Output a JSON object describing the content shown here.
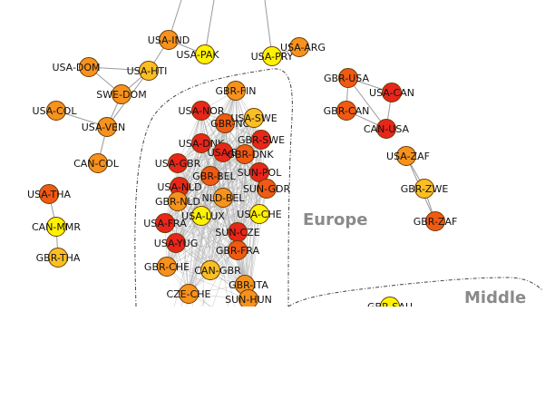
{
  "regions": [
    {
      "id": "europe",
      "label": "Europe"
    },
    {
      "id": "middle",
      "label": "Middle"
    }
  ],
  "colors": {
    "red": "#e8261a",
    "orange_red": "#f05a12",
    "orange": "#f7921d",
    "amber": "#fbbf24",
    "yellow": "#fff200",
    "edge": "#9a9a9a",
    "region_border": "#444444",
    "node_stroke": "#6b3a00"
  },
  "nodes": [
    {
      "id": "USA-IND",
      "label": "USA-IND",
      "color": "orange"
    },
    {
      "id": "USA-PAK",
      "label": "USA-PAK",
      "color": "yellow"
    },
    {
      "id": "USA-PRY",
      "label": "USA-PRY",
      "color": "yellow"
    },
    {
      "id": "USA-ARG",
      "label": "USA-ARG",
      "color": "orange"
    },
    {
      "id": "USA-DOM",
      "label": "USA-DOM",
      "color": "orange"
    },
    {
      "id": "USA-HTI",
      "label": "USA-HTI",
      "color": "amber"
    },
    {
      "id": "SWE-DOM",
      "label": "SWE-DOM",
      "color": "orange"
    },
    {
      "id": "USA-COL",
      "label": "USA-COL",
      "color": "orange"
    },
    {
      "id": "USA-VEN",
      "label": "USA-VEN",
      "color": "orange"
    },
    {
      "id": "CAN-COL",
      "label": "CAN-COL",
      "color": "orange"
    },
    {
      "id": "USA-THA",
      "label": "USA-THA",
      "color": "orange_red"
    },
    {
      "id": "CAN-MMR",
      "label": "CAN-MMR",
      "color": "yellow"
    },
    {
      "id": "GBR-THA",
      "label": "GBR-THA",
      "color": "amber"
    },
    {
      "id": "GBR-USA",
      "label": "GBR-USA",
      "color": "orange_red"
    },
    {
      "id": "USA-CAN",
      "label": "USA-CAN",
      "color": "red"
    },
    {
      "id": "GBR-CAN",
      "label": "GBR-CAN",
      "color": "orange_red"
    },
    {
      "id": "CAN-USA",
      "label": "CAN-USA",
      "color": "red"
    },
    {
      "id": "USA-ZAF",
      "label": "USA-ZAF",
      "color": "orange"
    },
    {
      "id": "GBR-ZWE",
      "label": "GBR-ZWE",
      "color": "amber"
    },
    {
      "id": "GBR-ZAF",
      "label": "GBR-ZAF",
      "color": "orange_red"
    },
    {
      "id": "GBR-FIN",
      "label": "GBR-FIN",
      "color": "orange"
    },
    {
      "id": "USA-NOR",
      "label": "USA-NOR",
      "color": "red"
    },
    {
      "id": "GBR-NOR",
      "label": "GBR-NOR",
      "color": "orange_red"
    },
    {
      "id": "USA-SWE",
      "label": "USA-SWE",
      "color": "amber"
    },
    {
      "id": "USA-DNK",
      "label": "USA-DNK",
      "color": "red"
    },
    {
      "id": "GBR-SWE",
      "label": "GBR-SWE",
      "color": "red"
    },
    {
      "id": "USA-BEL",
      "label": "USA-BEL",
      "color": "red"
    },
    {
      "id": "GBR-DNK",
      "label": "GBR-DNK",
      "color": "orange_red"
    },
    {
      "id": "USA-GBR",
      "label": "USA-GBR",
      "color": "red"
    },
    {
      "id": "GBR-BEL",
      "label": "GBR-BEL",
      "color": "orange_red"
    },
    {
      "id": "SUN-POL",
      "label": "SUN-POL",
      "color": "red"
    },
    {
      "id": "USA-NLD",
      "label": "USA-NLD",
      "color": "red"
    },
    {
      "id": "SUN-GDR",
      "label": "SUN-GDR",
      "color": "orange_red"
    },
    {
      "id": "GBR-NLD",
      "label": "GBR-NLD",
      "color": "orange"
    },
    {
      "id": "NLD-BEL",
      "label": "NLD-BEL",
      "color": "orange"
    },
    {
      "id": "USA-LUX",
      "label": "USA-LUX",
      "color": "yellow"
    },
    {
      "id": "USA-CHE",
      "label": "USA-CHE",
      "color": "yellow"
    },
    {
      "id": "USA-FRA",
      "label": "USA-FRA",
      "color": "red"
    },
    {
      "id": "SUN-CZE",
      "label": "SUN-CZE",
      "color": "red"
    },
    {
      "id": "USA-YUG",
      "label": "USA-YUG",
      "color": "red"
    },
    {
      "id": "GBR-FRA",
      "label": "GBR-FRA",
      "color": "orange_red"
    },
    {
      "id": "GBR-CHE",
      "label": "GBR-CHE",
      "color": "orange"
    },
    {
      "id": "CAN-GBR",
      "label": "CAN-GBR",
      "color": "amber"
    },
    {
      "id": "GBR-ITA",
      "label": "GBR-ITA",
      "color": "orange"
    },
    {
      "id": "CZE-CHE",
      "label": "CZE-CHE",
      "color": "orange"
    },
    {
      "id": "SUN-HUN",
      "label": "SUN-HUN",
      "color": "orange"
    },
    {
      "id": "GBR-SAU",
      "label": "GBR-SAU",
      "color": "yellow"
    }
  ],
  "edges": [
    [
      "USA-DOM",
      "USA-HTI"
    ],
    [
      "USA-DOM",
      "SWE-DOM"
    ],
    [
      "USA-HTI",
      "SWE-DOM"
    ],
    [
      "USA-HTI",
      "USA-IND"
    ],
    [
      "USA-HTI",
      "USA-VEN"
    ],
    [
      "USA-COL",
      "USA-VEN"
    ],
    [
      "USA-VEN",
      "CAN-COL"
    ],
    [
      "SWE-DOM",
      "USA-VEN"
    ],
    [
      "USA-PAK",
      "USA-IND"
    ],
    [
      "USA-PRY",
      "USA-ARG"
    ],
    [
      "USA-THA",
      "CAN-MMR"
    ],
    [
      "CAN-MMR",
      "GBR-THA"
    ],
    [
      "GBR-USA",
      "USA-CAN"
    ],
    [
      "GBR-USA",
      "GBR-CAN"
    ],
    [
      "GBR-USA",
      "CAN-USA"
    ],
    [
      "USA-CAN",
      "CAN-USA"
    ],
    [
      "GBR-CAN",
      "CAN-USA"
    ],
    [
      "USA-ZAF",
      "GBR-ZWE"
    ],
    [
      "GBR-ZWE",
      "GBR-ZAF"
    ],
    [
      "USA-ZAF",
      "GBR-ZAF"
    ]
  ]
}
